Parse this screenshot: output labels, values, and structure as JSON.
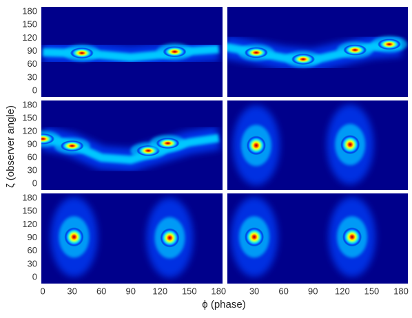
{
  "axis_labels": {
    "x": "ϕ (phase)",
    "y": "ζ (observer angle)"
  },
  "colormap": [
    "#00008b",
    "#0040ff",
    "#00c8ff",
    "#70ffa0",
    "#ffff00",
    "#ff4000",
    "#8b0000"
  ],
  "chart_data": [
    {
      "type": "heatmap",
      "xlim": [
        -1.5,
        184
      ],
      "ylim": [
        -14,
        191
      ],
      "yticks": [
        0,
        30,
        60,
        90,
        120,
        150,
        180
      ],
      "ridge": {
        "x": [
          0,
          30,
          60,
          90,
          120,
          150,
          180
        ],
        "y": [
          88,
          86,
          82,
          76,
          82,
          90,
          95
        ]
      },
      "peaks": {
        "x": [
          40,
          135
        ],
        "y": [
          86,
          89
        ]
      }
    },
    {
      "type": "heatmap",
      "xlim": [
        2.5,
        187
      ],
      "ylim": [
        -14,
        191
      ],
      "ridge": {
        "x": [
          0,
          30,
          60,
          90,
          120,
          150,
          180
        ],
        "y": [
          100,
          88,
          75,
          70,
          85,
          100,
          105
        ]
      },
      "peaks": {
        "x": [
          32,
          80,
          133,
          168
        ],
        "y": [
          87,
          72,
          93,
          106
        ]
      }
    },
    {
      "type": "heatmap",
      "xlim": [
        -1.5,
        184
      ],
      "ylim": [
        -14,
        191
      ],
      "yticks": [
        0,
        30,
        60,
        90,
        120,
        150,
        180
      ],
      "ridge": {
        "x": [
          0,
          30,
          60,
          90,
          120,
          150,
          180
        ],
        "y": [
          105,
          90,
          60,
          55,
          75,
          95,
          105
        ]
      },
      "peaks": {
        "x": [
          0,
          30,
          108,
          128
        ],
        "y": [
          103,
          87,
          76,
          93
        ]
      }
    },
    {
      "type": "heatmap",
      "xlim": [
        2.5,
        187
      ],
      "ylim": [
        -14,
        191
      ],
      "peaks": {
        "x": [
          32,
          128
        ],
        "y": [
          88,
          90
        ]
      }
    },
    {
      "type": "heatmap",
      "xlim": [
        -1.5,
        184
      ],
      "ylim": [
        -14,
        191
      ],
      "yticks": [
        0,
        30,
        60,
        90,
        120,
        150,
        180
      ],
      "xticks": [
        0,
        30,
        60,
        90,
        120,
        150,
        180
      ],
      "peaks": {
        "x": [
          32,
          130
        ],
        "y": [
          92,
          90
        ]
      }
    },
    {
      "type": "heatmap",
      "xlim": [
        2.5,
        187
      ],
      "ylim": [
        -14,
        191
      ],
      "xticks": [
        30,
        60,
        90,
        120,
        150,
        180
      ],
      "peaks": {
        "x": [
          30,
          130
        ],
        "y": [
          92,
          92
        ]
      }
    }
  ]
}
